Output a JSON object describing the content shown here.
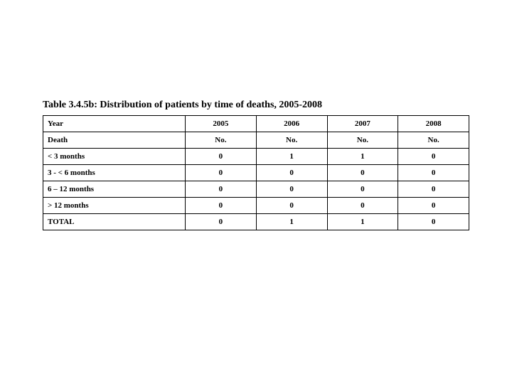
{
  "title": "Table 3.4.5b: Distribution of patients by time of deaths, 2005-2008",
  "table": {
    "type": "table",
    "border_color": "#000000",
    "background_color": "#ffffff",
    "font_family": "Times New Roman",
    "title_fontsize": 14,
    "cell_fontsize": 11,
    "header_rows": [
      {
        "label": "Year",
        "cells": [
          "2005",
          "2006",
          "2007",
          "2008"
        ]
      },
      {
        "label": "Death",
        "cells": [
          "No.",
          "No.",
          "No.",
          "No."
        ]
      }
    ],
    "body_rows": [
      {
        "label": "< 3 months",
        "cells": [
          "0",
          "1",
          "1",
          "0"
        ]
      },
      {
        "label": "3 - < 6 months",
        "cells": [
          "0",
          "0",
          "0",
          "0"
        ]
      },
      {
        "label": "6 – 12 months",
        "cells": [
          "0",
          "0",
          "0",
          "0"
        ]
      },
      {
        "label": "> 12 months",
        "cells": [
          "0",
          "0",
          "0",
          "0"
        ]
      },
      {
        "label": "TOTAL",
        "cells": [
          "0",
          "1",
          "1",
          "0"
        ]
      }
    ]
  }
}
